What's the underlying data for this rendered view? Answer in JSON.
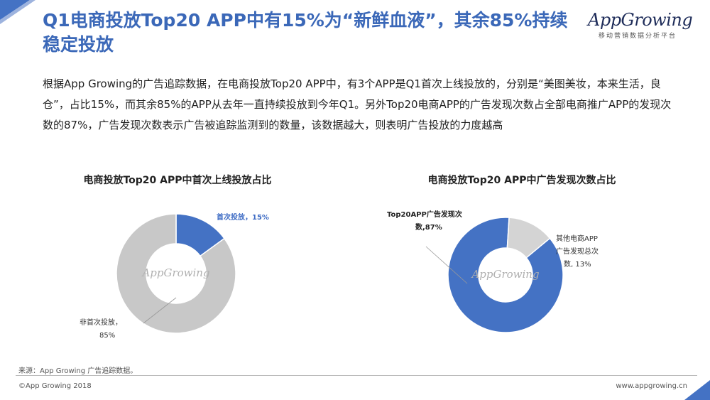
{
  "header": {
    "title": "Q1电商投放Top20 APP中有15%为“新鲜血液”，其余85%持续稳定投放",
    "logo_text": "AppGrowing",
    "logo_subtitle": "移动营销数据分析平台"
  },
  "description": "根据App Growing的广告追踪数据，在电商投放Top20 APP中，有3个APP是Q1首次上线投放的，分别是“美图美妆，本来生活，良仓”，占比15%，而其余85%的APP从去年一直持续投放到今年Q1。另外Top20电商APP的广告发现次数占全部电商推广APP的发现次数的87%，广告发现次数表示广告被追踪监测到的数量，该数据越大，则表明广告投放的力度越高",
  "chart_data": [
    {
      "type": "pie",
      "title": "电商投放Top20 APP中首次上线投放占比",
      "watermark": "AppGrowing",
      "categories": [
        "首次投放",
        "非首次投放"
      ],
      "values": [
        15,
        85
      ],
      "labels": [
        "首次投放，15%",
        "非首次投放，",
        "85%"
      ],
      "colors": [
        "#4472c4",
        "#c8c8c8"
      ]
    },
    {
      "type": "pie",
      "title": "电商投放Top20 APP中广告发现次数占比",
      "watermark": "AppGrowing",
      "categories": [
        "Top20APP广告发现次数",
        "其他电商APP广告发现总次数"
      ],
      "values": [
        87,
        13
      ],
      "labels": [
        "Top20APP广告发现次",
        "数,87%",
        "其他电商APP",
        "广告发现总次",
        "数, 13%"
      ],
      "colors": [
        "#4472c4",
        "#d4d4d4"
      ]
    }
  ],
  "footer": {
    "source": "来源：App Growing 广告追踪数据。",
    "copyright": "©App Growing 2018",
    "website": "www.appgrowing.cn"
  }
}
